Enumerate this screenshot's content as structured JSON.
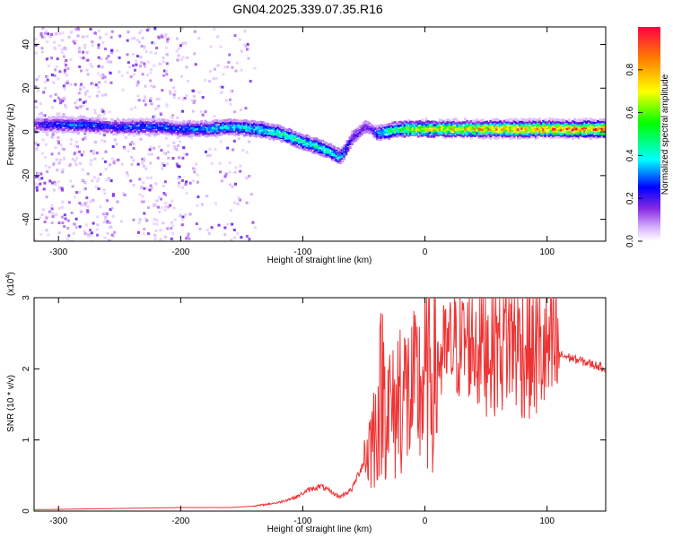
{
  "title": "GN04.2025.339.07.35.R16",
  "chart_data": [
    {
      "type": "heatmap",
      "xlabel": "Height of straight line (km)",
      "ylabel": "Frequency (Hz)",
      "xlim": [
        -320,
        148
      ],
      "ylim": [
        -50,
        48
      ],
      "x_ticks": [
        -300,
        -200,
        -100,
        0,
        100
      ],
      "y_ticks": [
        -40,
        -20,
        0,
        20,
        40
      ],
      "colorbar": {
        "label": "Normalized spectral amplitude",
        "range": [
          0,
          1
        ],
        "ticks": [
          "0.0",
          "0.2",
          "0.4",
          "0.6",
          "0.8"
        ]
      },
      "ridge": {
        "x": [
          -320,
          -300,
          -280,
          -260,
          -240,
          -220,
          -200,
          -180,
          -160,
          -140,
          -120,
          -100,
          -80,
          -70,
          -60,
          -50,
          -45,
          -40,
          -30,
          -20,
          0,
          50,
          100,
          148
        ],
        "freq": [
          4,
          4,
          4,
          3,
          3,
          3,
          2,
          2,
          3,
          2,
          0,
          -4,
          -8,
          -11,
          -2,
          3,
          2,
          0,
          1,
          2,
          2,
          2,
          2,
          2
        ],
        "amplitude": [
          0.2,
          0.3,
          0.3,
          0.25,
          0.3,
          0.3,
          0.3,
          0.35,
          0.4,
          0.4,
          0.45,
          0.45,
          0.45,
          0.4,
          0.2,
          0.2,
          0.2,
          0.3,
          0.5,
          0.6,
          0.7,
          0.8,
          0.85,
          0.95
        ]
      }
    },
    {
      "type": "line",
      "xlabel": "Height of straight line (km)",
      "ylabel": "SNR (10 * v/v)",
      "y_multiplier": "(x10",
      "y_multiplier_exp": "4",
      "y_multiplier_close": ")",
      "xlim": [
        -320,
        148
      ],
      "ylim": [
        0,
        3
      ],
      "x_ticks": [
        -300,
        -200,
        -100,
        0,
        100
      ],
      "y_ticks": [
        0,
        1,
        2,
        3
      ],
      "series": [
        {
          "color": "#ee3333",
          "x": [
            -320,
            -280,
            -240,
            -200,
            -160,
            -140,
            -120,
            -105,
            -95,
            -85,
            -70,
            -60,
            -50,
            -40,
            -35,
            -30,
            -25,
            -20,
            -15,
            -10,
            0,
            10,
            20,
            30,
            40,
            50,
            60,
            70,
            80,
            90,
            100,
            110,
            120,
            130,
            140,
            148
          ],
          "y": [
            0.02,
            0.03,
            0.04,
            0.05,
            0.05,
            0.07,
            0.12,
            0.2,
            0.3,
            0.35,
            0.2,
            0.3,
            0.7,
            1.2,
            1.8,
            1.5,
            1.3,
            1.8,
            1.6,
            1.6,
            1.8,
            2.1,
            2.25,
            2.35,
            2.38,
            2.4,
            2.42,
            2.45,
            2.3,
            2.25,
            2.2,
            2.2,
            2.15,
            2.1,
            2.05,
            2.0
          ]
        }
      ]
    }
  ]
}
